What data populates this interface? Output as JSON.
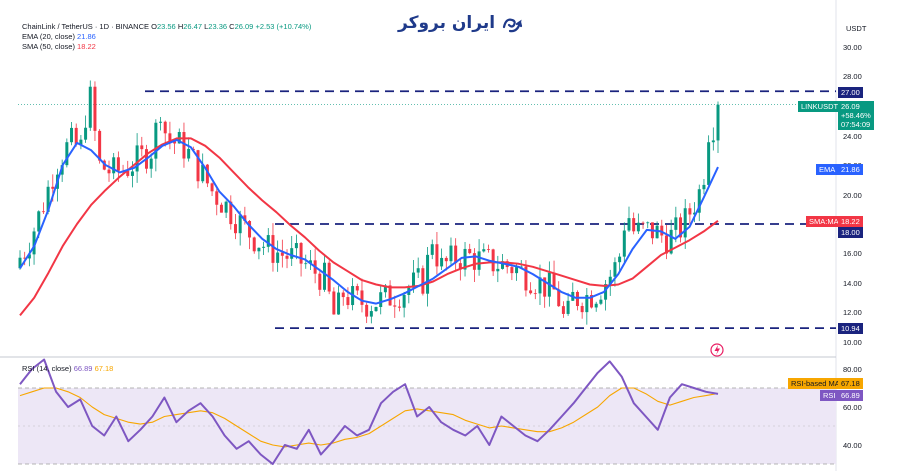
{
  "header": {
    "symbol_line": "ChainLink / TetherUS · 1D · BINANCE",
    "ohlc": {
      "o_label": "O",
      "o": "23.56",
      "h_label": "H",
      "h": "26.47",
      "l_label": "L",
      "l": "23.36",
      "c_label": "C",
      "c": "26.09",
      "change": "+2.53 (+10.74%)"
    },
    "ema_label": "EMA (20, close)",
    "ema_value": "21.86",
    "sma_label": "SMA (50, close)",
    "sma_value": "18.22",
    "rsi_label": "RSI (14, close)",
    "rsi_value": "66.89",
    "rsi_ma_value": "67.18"
  },
  "watermark": {
    "text": "ایران بروکر",
    "icon": "chart-swirl-logo-icon"
  },
  "price_axis": {
    "currency": "USDT",
    "ticks": [
      "30.00",
      "28.00",
      "24.00",
      "22.00",
      "20.00",
      "16.00",
      "14.00",
      "12.00",
      "10.00"
    ],
    "tags": {
      "level_27": "27.00",
      "symbol": "LINKUSDT",
      "last": "26.09",
      "change_pct": "+58.46%",
      "countdown": "07:54:09",
      "ema_name": "EMA",
      "ema": "21.86",
      "sma_name": "SMA:MA",
      "sma": "18.22",
      "level_18": "18.00",
      "level_1094": "10.94"
    }
  },
  "rsi_axis": {
    "ticks": [
      "80.00",
      "60.00",
      "40.00"
    ],
    "tags": {
      "ma_name": "RSI-based MA",
      "ma": "67.18",
      "rsi_name": "RSI",
      "rsi": "66.89"
    }
  },
  "colors": {
    "up": "#089981",
    "down": "#f23645",
    "ema": "#2962ff",
    "sma": "#f23645",
    "level": "#1a237e",
    "rsi": "#7e57c2",
    "rsi_ma": "#f7a600",
    "rsi_band": "#ede7f6"
  },
  "chart_data": [
    {
      "type": "line",
      "title": "ChainLink / TetherUS · 1D · BINANCE",
      "ylabel": "USDT",
      "ylim": [
        9.5,
        31.5
      ],
      "levels": [
        27.0,
        18.0,
        10.94
      ],
      "series": [
        {
          "name": "EMA (20, close)",
          "values": [
            15,
            16.5,
            19,
            22,
            23.5,
            23,
            22,
            21.5,
            21.8,
            22.5,
            23.3,
            23.7,
            23.2,
            21.8,
            20.2,
            19.2,
            18,
            17,
            16.3,
            15.9,
            15.6,
            14.9,
            14.2,
            13.4,
            12.8,
            12.6,
            12.9,
            13.3,
            13.8,
            14.3,
            15,
            15.7,
            15.8,
            15.5,
            15.3,
            15.1,
            14.6,
            14,
            13.4,
            13,
            13,
            13.4,
            14.6,
            16.3,
            17.6,
            17.5,
            17,
            17.8,
            19.8,
            21.86
          ]
        },
        {
          "name": "SMA (50, close)",
          "values": [
            11.8,
            13,
            14.7,
            16.5,
            18,
            19.3,
            20.3,
            21.2,
            22,
            22.8,
            23.4,
            23.8,
            23.8,
            23.3,
            22.5,
            21.5,
            20.5,
            19.6,
            18.8,
            17.9,
            17.1,
            16.2,
            15.4,
            14.8,
            14.2,
            13.9,
            13.7,
            13.7,
            13.8,
            14.1,
            14.6,
            15,
            15.3,
            15.4,
            15.4,
            15.3,
            15.1,
            14.8,
            14.5,
            14.2,
            13.9,
            13.8,
            13.9,
            14.3,
            15.1,
            15.9,
            16.4,
            16.9,
            17.5,
            18.22
          ]
        }
      ]
    },
    {
      "type": "line",
      "title": "RSI (14, close)",
      "ylim": [
        27,
        87
      ],
      "bands": [
        70,
        30
      ],
      "series": [
        {
          "name": "RSI (14, close)",
          "values": [
            72,
            80,
            85,
            68,
            60,
            64,
            50,
            45,
            55,
            42,
            48,
            55,
            65,
            52,
            58,
            62,
            55,
            45,
            38,
            42,
            35,
            30,
            40,
            38,
            48,
            35,
            42,
            50,
            45,
            48,
            62,
            68,
            72,
            55,
            60,
            52,
            48,
            45,
            50,
            40,
            55,
            50,
            45,
            42,
            48,
            55,
            62,
            70,
            78,
            84,
            76,
            62,
            55,
            48,
            65,
            72,
            70,
            68,
            66.89
          ]
        },
        {
          "name": "RSI-based MA",
          "values": [
            66,
            68,
            70,
            70,
            68,
            65,
            60,
            56,
            54,
            52,
            51,
            52,
            55,
            56,
            57,
            58,
            57,
            54,
            50,
            46,
            42,
            40,
            39,
            40,
            41,
            40,
            41,
            43,
            44,
            46,
            50,
            54,
            58,
            59,
            58,
            57,
            56,
            53,
            51,
            49,
            50,
            49,
            48,
            47,
            47,
            49,
            52,
            56,
            60,
            66,
            70,
            70,
            67,
            63,
            61,
            63,
            65,
            66,
            67.18
          ]
        }
      ]
    }
  ]
}
